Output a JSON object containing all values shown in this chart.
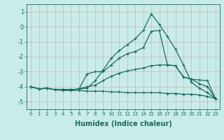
{
  "x": [
    0,
    1,
    2,
    3,
    4,
    5,
    6,
    7,
    8,
    9,
    10,
    11,
    12,
    13,
    14,
    15,
    16,
    17,
    18,
    19,
    20,
    21,
    22,
    23
  ],
  "line_top": [
    -4.0,
    -4.15,
    -4.1,
    -4.2,
    -4.2,
    -4.2,
    -4.15,
    -4.1,
    -3.6,
    -2.9,
    -2.1,
    -1.6,
    -1.2,
    -0.8,
    -0.25,
    0.85,
    0.15,
    -0.65,
    -1.5,
    -2.55,
    -3.7,
    -4.1,
    -4.4,
    -4.8
  ],
  "line_mid1": [
    -4.0,
    -4.15,
    -4.1,
    -4.2,
    -4.2,
    -4.2,
    -4.15,
    -3.15,
    -3.0,
    -3.0,
    -2.55,
    -2.1,
    -1.8,
    -1.65,
    -1.4,
    -0.3,
    -0.25,
    -2.55,
    -2.6,
    -3.35,
    -3.5,
    -3.8,
    -4.0,
    -4.8
  ],
  "line_mid2": [
    -4.0,
    -4.15,
    -4.1,
    -4.2,
    -4.2,
    -4.2,
    -4.15,
    -4.0,
    -3.9,
    -3.6,
    -3.3,
    -3.1,
    -2.95,
    -2.85,
    -2.75,
    -2.6,
    -2.55,
    -2.55,
    -2.6,
    -3.35,
    -3.5,
    -3.55,
    -3.6,
    -4.8
  ],
  "line_bot": [
    -4.0,
    -4.15,
    -4.1,
    -4.2,
    -4.25,
    -4.25,
    -4.25,
    -4.3,
    -4.3,
    -4.3,
    -4.35,
    -4.35,
    -4.4,
    -4.4,
    -4.4,
    -4.4,
    -4.4,
    -4.45,
    -4.45,
    -4.5,
    -4.5,
    -4.55,
    -4.65,
    -4.8
  ],
  "bg_color": "#c8ecea",
  "grid_color": "#b8d8d6",
  "line_color": "#1a6b5a",
  "xlabel": "Humidex (Indice chaleur)",
  "ylim": [
    -5.5,
    1.5
  ],
  "xlim": [
    -0.5,
    23.5
  ],
  "yticks": [
    1,
    0,
    -1,
    -2,
    -3,
    -4,
    -5
  ],
  "xticks": [
    0,
    1,
    2,
    3,
    4,
    5,
    6,
    7,
    8,
    9,
    10,
    11,
    12,
    13,
    14,
    15,
    16,
    17,
    18,
    19,
    20,
    21,
    22,
    23
  ]
}
